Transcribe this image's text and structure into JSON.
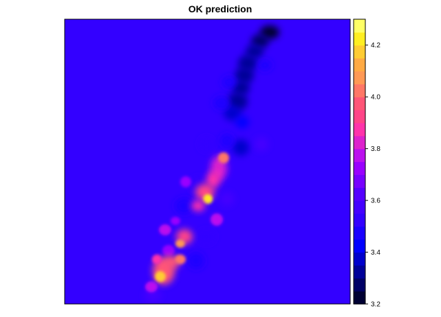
{
  "chart_data": {
    "type": "heatmap",
    "title": "OK prediction",
    "xlabel": "",
    "ylabel": "",
    "background_value": 3.57,
    "legend": {
      "position": "right",
      "range": [
        3.2,
        4.3
      ],
      "breaks": [
        3.2,
        3.25,
        3.3,
        3.35,
        3.4,
        3.45,
        3.5,
        3.55,
        3.6,
        3.65,
        3.7,
        3.75,
        3.8,
        3.85,
        3.9,
        3.95,
        4.0,
        4.05,
        4.1,
        4.15,
        4.2,
        4.25,
        4.3
      ],
      "colors": [
        "#000033",
        "#000066",
        "#000099",
        "#0000CC",
        "#0000FF",
        "#1A00FF",
        "#3300FF",
        "#4400FF",
        "#5500FF",
        "#7700FF",
        "#9900FF",
        "#BB11EE",
        "#DD22CC",
        "#FF33AA",
        "#FF4488",
        "#FF5577",
        "#FF7766",
        "#FF9955",
        "#FFAA44",
        "#FFCC33",
        "#FFEE22",
        "#FFFF66"
      ],
      "ticks": [
        {
          "value": 3.2,
          "label": "3.2"
        },
        {
          "value": 3.4,
          "label": "3.4"
        },
        {
          "value": 3.6,
          "label": "3.6"
        },
        {
          "value": 3.8,
          "label": "3.8"
        },
        {
          "value": 4.0,
          "label": "4.0"
        },
        {
          "value": 4.2,
          "label": "4.2"
        }
      ]
    },
    "grid": false
  }
}
